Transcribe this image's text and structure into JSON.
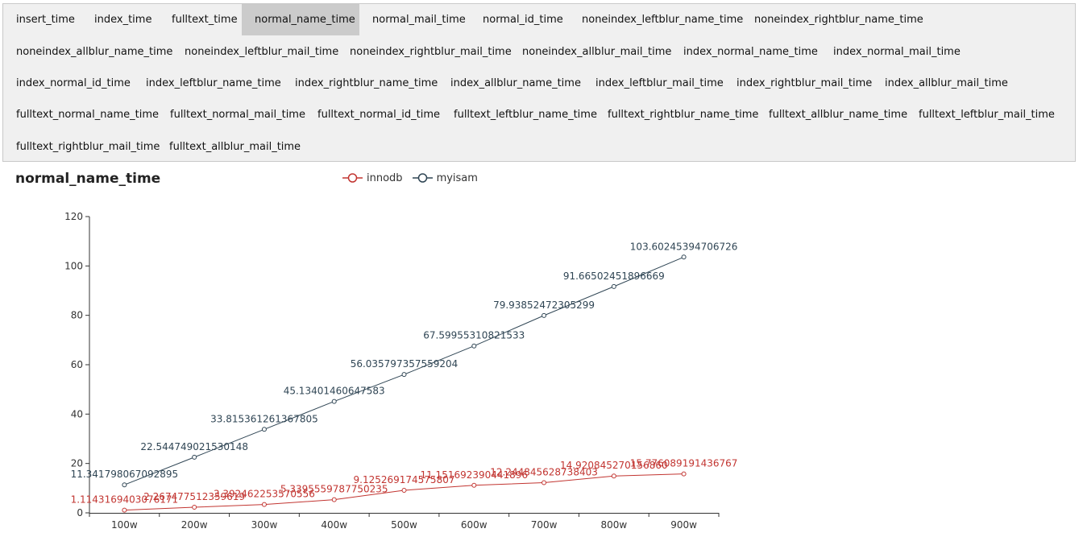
{
  "tabs": [
    {
      "label": "insert_time"
    },
    {
      "label": "index_time"
    },
    {
      "label": "fulltext_time"
    },
    {
      "label": "normal_name_time",
      "active": true
    },
    {
      "label": "normal_mail_time"
    },
    {
      "label": "normal_id_time"
    },
    {
      "label": "noneindex_leftblur_name_time"
    },
    {
      "label": "noneindex_rightblur_name_time"
    },
    {
      "label": "noneindex_allblur_name_time"
    },
    {
      "label": "noneindex_leftblur_mail_time"
    },
    {
      "label": "noneindex_rightblur_mail_time"
    },
    {
      "label": "noneindex_allblur_mail_time"
    },
    {
      "label": "index_normal_name_time"
    },
    {
      "label": "index_normal_mail_time"
    },
    {
      "label": "index_normal_id_time"
    },
    {
      "label": "index_leftblur_name_time"
    },
    {
      "label": "index_rightblur_name_time"
    },
    {
      "label": "index_allblur_name_time"
    },
    {
      "label": "index_leftblur_mail_time"
    },
    {
      "label": "index_rightblur_mail_time"
    },
    {
      "label": "index_allblur_mail_time"
    },
    {
      "label": "fulltext_normal_name_time"
    },
    {
      "label": "fulltext_normal_mail_time"
    },
    {
      "label": "fulltext_normal_id_time"
    },
    {
      "label": "fulltext_leftblur_name_time"
    },
    {
      "label": "fulltext_rightblur_name_time"
    },
    {
      "label": "fulltext_allblur_name_time"
    },
    {
      "label": "fulltext_leftblur_mail_time"
    },
    {
      "label": "fulltext_rightblur_mail_time"
    },
    {
      "label": "fulltext_allblur_mail_time"
    }
  ],
  "colors": {
    "innodb": "#c23531",
    "myisam": "#2f4554",
    "axis": "#333333"
  },
  "chart_data": {
    "type": "line",
    "title": "normal_name_time",
    "categories": [
      "100w",
      "200w",
      "300w",
      "400w",
      "500w",
      "600w",
      "700w",
      "800w",
      "900w"
    ],
    "ylim": [
      0,
      120
    ],
    "yticks": [
      0,
      20,
      40,
      60,
      80,
      100,
      120
    ],
    "grid": false,
    "legend_position": "top-center",
    "series": [
      {
        "name": "innodb",
        "values": [
          1.1143169403076172,
          2.267477512359619,
          3.392462253570556,
          5.3395559787750235,
          9.125269174575807,
          11.151692390441896,
          12.244845628738403,
          14.92084527015686,
          15.776089191436768
        ],
        "labels": [
          "1.1143169403076171",
          "2.267477512359619",
          "3.392462253570556",
          "5.3395559787750235",
          "9.125269174575807",
          "11.151692390441896",
          "12.244845628738403",
          "14.920845270156860",
          "15.776089191436767"
        ]
      },
      {
        "name": "myisam",
        "values": [
          11.341798067092896,
          22.544749021530148,
          33.815361261367805,
          45.13401460647583,
          56.035797357559204,
          67.59955310821533,
          79.93852472305299,
          91.66502451896669,
          103.60245394706726
        ],
        "labels": [
          "11.341798067092895",
          "22.544749021530148",
          "33.815361261367805",
          "45.13401460647583",
          "56.035797357559204",
          "67.59955310821533",
          "79.93852472305299",
          "91.66502451896669",
          "103.60245394706726"
        ]
      }
    ]
  }
}
